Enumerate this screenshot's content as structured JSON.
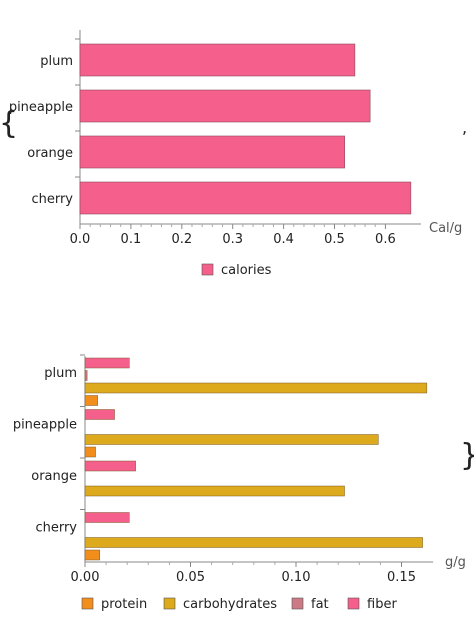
{
  "brackets": {
    "open": "{",
    "close": "}",
    "separator": ","
  },
  "chart_data": [
    {
      "type": "bar",
      "orientation": "horizontal",
      "categories": [
        "cherry",
        "orange",
        "pineapple",
        "plum"
      ],
      "series": [
        {
          "name": "calories",
          "values": [
            0.65,
            0.52,
            0.57,
            0.54
          ],
          "color": "#f4608b"
        }
      ],
      "xlabel": "Cal/g",
      "xlim": [
        0,
        0.67
      ],
      "xticks": [
        0.0,
        0.1,
        0.2,
        0.3,
        0.4,
        0.5,
        0.6
      ],
      "legend": "bottom"
    },
    {
      "type": "bar",
      "orientation": "horizontal",
      "categories": [
        "cherry",
        "orange",
        "pineapple",
        "plum"
      ],
      "series": [
        {
          "name": "protein",
          "values": [
            0.007,
            0.0,
            0.005,
            0.006
          ],
          "color": "#f28e1c"
        },
        {
          "name": "carbohydrates",
          "values": [
            0.16,
            0.123,
            0.139,
            0.162
          ],
          "color": "#dcaa1c"
        },
        {
          "name": "fat",
          "values": [
            0.0,
            0.0,
            0.0,
            0.001
          ],
          "color": "#cc7a85"
        },
        {
          "name": "fiber",
          "values": [
            0.021,
            0.024,
            0.014,
            0.021
          ],
          "color": "#f4608b"
        }
      ],
      "xlabel": "g/g",
      "xlim": [
        0,
        0.165
      ],
      "xticks": [
        0.0,
        0.05,
        0.1,
        0.15
      ],
      "legend": "bottom"
    }
  ]
}
